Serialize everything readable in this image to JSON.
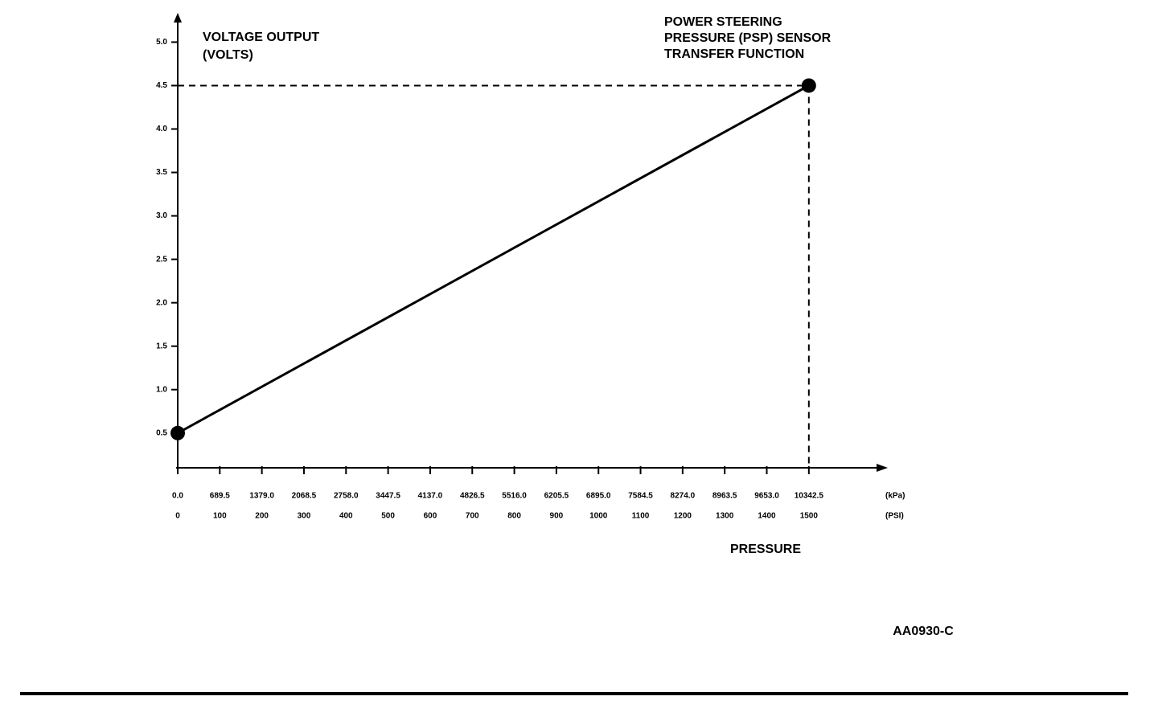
{
  "chart_data": {
    "type": "line",
    "title": [
      "POWER STEERING",
      "PRESSURE (PSP) SENSOR",
      "TRANSFER FUNCTION"
    ],
    "ylabel": [
      "VOLTAGE OUTPUT",
      "(VOLTS)"
    ],
    "xlabel": "PRESSURE",
    "x_unit": "(PSI)",
    "x2_unit": "(kPa)",
    "figure_id": "AA0930-C",
    "x": [
      0,
      1500
    ],
    "values": [
      0.5,
      4.5
    ],
    "color": "#000000",
    "markers": true,
    "guides": true,
    "xlim": [
      0,
      1680
    ],
    "x2lim": [
      0,
      11583.6
    ],
    "ylim": [
      0.1,
      5.3
    ],
    "xticks": [
      0,
      100,
      200,
      300,
      400,
      500,
      600,
      700,
      800,
      900,
      1000,
      1100,
      1200,
      1300,
      1400,
      1500
    ],
    "x2ticks": [
      {
        "value": 0,
        "label": "0.0"
      },
      689.5,
      {
        "value": 1379,
        "label": "1379.0"
      },
      2068.5,
      {
        "value": 2758,
        "label": "2758.0"
      },
      3447.5,
      {
        "value": 4137,
        "label": "4137.0"
      },
      4826.5,
      {
        "value": 5516,
        "label": "5516.0"
      },
      6205.5,
      {
        "value": 6895,
        "label": "6895.0"
      },
      7584.5,
      {
        "value": 8274,
        "label": "8274.0"
      },
      8963.5,
      {
        "value": 9653,
        "label": "9653.0"
      },
      10342.5
    ],
    "yticks": [
      0.5,
      {
        "value": 1,
        "label": "1.0"
      },
      1.5,
      {
        "value": 2,
        "label": "2.0"
      },
      2.5,
      {
        "value": 3,
        "label": "3.0"
      },
      3.5,
      {
        "value": 4,
        "label": "4.0"
      },
      4.5,
      {
        "value": 5,
        "label": "5.0"
      }
    ]
  }
}
